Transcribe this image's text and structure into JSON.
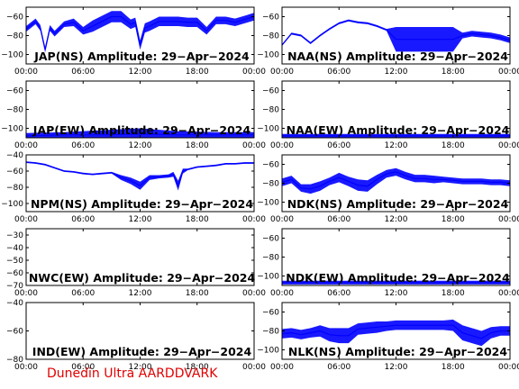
{
  "footer": "Dunedin Ultra AARDDVARK",
  "colors": {
    "trace": "#0000ff",
    "axis": "#000000",
    "footer": "#e00000"
  },
  "chart_data": [
    {
      "type": "line",
      "title": "JAP(NS) Amplitude: 29-Apr-2024",
      "xticks": [
        "00:00",
        "06:00",
        "12:00",
        "18:00",
        "00:00"
      ],
      "yticks": [
        -100,
        -80,
        -60
      ],
      "ylim": [
        -110,
        -50
      ],
      "trace": {
        "x": [
          0,
          1,
          1.5,
          2,
          2.5,
          3,
          4,
          5,
          6,
          7,
          8,
          9,
          10,
          11,
          11.5,
          12,
          12.5,
          13,
          14,
          15,
          16,
          17,
          18,
          19,
          20,
          21,
          22,
          23,
          24
        ],
        "y": [
          -73,
          -65,
          -72,
          -95,
          -72,
          -78,
          -68,
          -66,
          -75,
          -70,
          -65,
          -60,
          -60,
          -68,
          -66,
          -90,
          -72,
          -70,
          -65,
          -65,
          -65,
          -66,
          -66,
          -75,
          -64,
          -64,
          -66,
          -63,
          -60
        ],
        "band": [
          3,
          3,
          3,
          3,
          3,
          3,
          3,
          4,
          4,
          6,
          6,
          6,
          6,
          5,
          5,
          5,
          5,
          5,
          5,
          5,
          5,
          5,
          5,
          4,
          4,
          4,
          4,
          4,
          4
        ]
      }
    },
    {
      "type": "line",
      "title": "NAA(NS) Amplitude: 29-Apr-2024",
      "xticks": [
        "00:00",
        "06:00",
        "12:00",
        "18:00",
        "00:00"
      ],
      "yticks": [
        -100,
        -80,
        -60
      ],
      "ylim": [
        -110,
        -50
      ],
      "trace": {
        "x": [
          0,
          1,
          2,
          3,
          4,
          5,
          6,
          7,
          8,
          9,
          10,
          11,
          12,
          13,
          14,
          15,
          16,
          17,
          18,
          19,
          20,
          21,
          22,
          23,
          24
        ],
        "y": [
          -90,
          -78,
          -80,
          -88,
          -80,
          -73,
          -67,
          -64,
          -66,
          -67,
          -70,
          -74,
          -84,
          -84,
          -84,
          -84,
          -84,
          -84,
          -84,
          -80,
          -78,
          -79,
          -80,
          -82,
          -85
        ],
        "band": [
          1,
          1,
          1,
          1,
          1,
          1,
          1,
          1,
          1,
          1,
          1,
          1,
          13,
          13,
          13,
          13,
          13,
          13,
          13,
          3,
          3,
          3,
          3,
          3,
          3
        ]
      }
    },
    {
      "type": "line",
      "title": "JAP(EW) Amplitude: 29-Apr-2024",
      "xticks": [
        "00:00",
        "06:00",
        "12:00",
        "18:00",
        "00:00"
      ],
      "yticks": [
        -100,
        -80,
        -60
      ],
      "ylim": [
        -110,
        -50
      ],
      "trace": {
        "x": [
          0,
          4,
          8,
          12,
          16,
          20,
          24
        ],
        "y": [
          -108,
          -107,
          -107,
          -106,
          -107,
          -107,
          -107
        ],
        "band": [
          3,
          3,
          5,
          6,
          4,
          3,
          3
        ]
      }
    },
    {
      "type": "line",
      "title": "NAA(EW) Amplitude: 29-Apr-2024",
      "xticks": [
        "00:00",
        "06:00",
        "12:00",
        "18:00",
        "00:00"
      ],
      "yticks": [
        -100,
        -80,
        -60
      ],
      "ylim": [
        -110,
        -50
      ],
      "trace": {
        "x": [
          0,
          6,
          12,
          18,
          24
        ],
        "y": [
          -108,
          -108,
          -108,
          -108,
          -108
        ],
        "band": [
          2,
          2,
          2,
          2,
          2
        ]
      }
    },
    {
      "type": "line",
      "title": "NPM(NS) Amplitude: 29-Apr-2024",
      "xticks": [
        "00:00",
        "06:00",
        "12:00",
        "18:00",
        "00:00"
      ],
      "yticks": [
        -100,
        -80,
        -60,
        -40
      ],
      "ylim": [
        -110,
        -40
      ],
      "trace": {
        "x": [
          0,
          1,
          2,
          3,
          4,
          5,
          6,
          7,
          8,
          9,
          10,
          11,
          12,
          13,
          14,
          15,
          15.5,
          16,
          16.5,
          17,
          18,
          19,
          20,
          21,
          22,
          23,
          24
        ],
        "y": [
          -49,
          -50,
          -52,
          -56,
          -60,
          -61,
          -63,
          -64,
          -63,
          -62,
          -68,
          -72,
          -78,
          -68,
          -67,
          -66,
          -64,
          -78,
          -60,
          -58,
          -55,
          -54,
          -53,
          -51,
          -51,
          -50,
          -50
        ],
        "band": [
          1,
          1,
          1,
          1,
          1,
          1,
          1,
          1,
          1,
          1,
          3,
          4,
          5,
          3,
          2,
          2,
          3,
          6,
          3,
          1,
          1,
          1,
          1,
          1,
          1,
          1,
          1
        ]
      }
    },
    {
      "type": "line",
      "title": "NDK(NS) Amplitude: 29-Apr-2024",
      "xticks": [
        "00:00",
        "06:00",
        "12:00",
        "18:00",
        "00:00"
      ],
      "yticks": [
        -100,
        -80,
        -60
      ],
      "ylim": [
        -110,
        -50
      ],
      "trace": {
        "x": [
          0,
          1,
          2,
          3,
          4,
          5,
          6,
          7,
          8,
          9,
          10,
          11,
          12,
          13,
          14,
          15,
          16,
          17,
          18,
          19,
          20,
          21,
          22,
          23,
          24
        ],
        "y": [
          -79,
          -76,
          -85,
          -86,
          -83,
          -78,
          -74,
          -78,
          -82,
          -83,
          -76,
          -70,
          -68,
          -72,
          -75,
          -75,
          -76,
          -76,
          -77,
          -78,
          -78,
          -78,
          -79,
          -79,
          -80
        ],
        "band": [
          4,
          4,
          4,
          5,
          5,
          4,
          5,
          5,
          6,
          6,
          5,
          4,
          4,
          4,
          4,
          4,
          4,
          3,
          3,
          3,
          3,
          3,
          3,
          3,
          3
        ]
      }
    },
    {
      "type": "line",
      "title": "NWC(EW) Amplitude: 29-Apr-2024",
      "xticks": [
        "00:00",
        "06:00",
        "12:00",
        "18:00",
        "00:00"
      ],
      "yticks": [
        -70,
        -60,
        -50,
        -40,
        -30
      ],
      "ylim": [
        -70,
        -25
      ],
      "trace": {
        "x": [],
        "y": [],
        "band": []
      }
    },
    {
      "type": "line",
      "title": "NDK(EW) Amplitude: 29-Apr-2024",
      "xticks": [
        "00:00",
        "06:00",
        "12:00",
        "18:00",
        "00:00"
      ],
      "yticks": [
        -100,
        -80,
        -60
      ],
      "ylim": [
        -110,
        -50
      ],
      "trace": {
        "x": [
          0,
          6,
          12,
          18,
          24
        ],
        "y": [
          -107,
          -107,
          -107,
          -107,
          -107
        ],
        "band": [
          2,
          2,
          2,
          2,
          2
        ]
      }
    },
    {
      "type": "line",
      "title": "IND(EW) Amplitude: 29-Apr-2024",
      "xticks": [
        "00:00",
        "06:00",
        "12:00",
        "18:00",
        "00:00"
      ],
      "yticks": [
        -80,
        -60,
        -40
      ],
      "ylim": [
        -80,
        -40
      ],
      "trace": {
        "x": [],
        "y": [],
        "band": []
      }
    },
    {
      "type": "line",
      "title": "NLK(NS) Amplitude: 29-Apr-2024",
      "xticks": [
        "00:00",
        "06:00",
        "12:00",
        "18:00",
        "00:00"
      ],
      "yticks": [
        -100,
        -80,
        -60
      ],
      "ylim": [
        -110,
        -50
      ],
      "trace": {
        "x": [
          0,
          1,
          2,
          3,
          4,
          5,
          6,
          7,
          8,
          9,
          10,
          11,
          12,
          13,
          14,
          15,
          16,
          17,
          18,
          19,
          20,
          21,
          22,
          23,
          24
        ],
        "y": [
          -83,
          -82,
          -84,
          -82,
          -80,
          -84,
          -85,
          -85,
          -78,
          -77,
          -76,
          -75,
          -74,
          -74,
          -74,
          -74,
          -74,
          -74,
          -74,
          -82,
          -85,
          -88,
          -82,
          -80,
          -80
        ],
        "band": [
          5,
          5,
          5,
          5,
          6,
          7,
          8,
          8,
          6,
          6,
          6,
          5,
          5,
          5,
          5,
          5,
          5,
          5,
          6,
          8,
          8,
          8,
          6,
          5,
          5
        ]
      }
    }
  ]
}
